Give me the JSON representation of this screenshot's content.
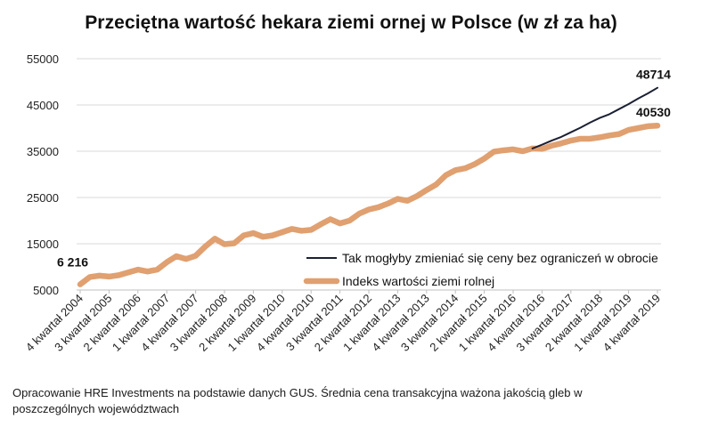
{
  "chart_title": "Przeciętna wartość hekara ziemi ornej w Polsce (w zł za ha)",
  "footnote": "Opracowanie HRE Investments na podstawie danych GUS. Średnia cena transakcyjna ważona jakością gleb w poszczególnych województwach",
  "colors": {
    "index_series": "#e0a070",
    "hypothetical_series": "#1b2033",
    "gridline": "#d9d9d9",
    "axis": "#bfbfbf"
  },
  "chart_data": {
    "type": "line",
    "title": "Przeciętna wartość hekara ziemi ornej w Polsce (w zł za ha)",
    "xlabel": "",
    "ylabel": "",
    "ylim": [
      5000,
      55000
    ],
    "yticks": [
      5000,
      15000,
      25000,
      35000,
      45000,
      55000
    ],
    "ytick_labels": [
      "5000",
      "15000",
      "25000",
      "35000",
      "45000",
      "55000"
    ],
    "grid": true,
    "legend_position": "bottom-right",
    "categories": [
      "4 kwartał 2004",
      "1 kwartał 2005",
      "2 kwartał 2005",
      "3 kwartał 2005",
      "4 kwartał 2005",
      "1 kwartał 2006",
      "2 kwartał 2006",
      "3 kwartał 2006",
      "4 kwartał 2006",
      "1 kwartał 2007",
      "2 kwartał 2007",
      "3 kwartał 2007",
      "4 kwartał 2007",
      "1 kwartał 2008",
      "2 kwartał 2008",
      "3 kwartał 2008",
      "4 kwartał 2008",
      "1 kwartał 2009",
      "2 kwartał 2009",
      "3 kwartał 2009",
      "4 kwartał 2009",
      "1 kwartał 2010",
      "2 kwartał 2010",
      "3 kwartał 2010",
      "4 kwartał 2010",
      "1 kwartał 2011",
      "2 kwartał 2011",
      "3 kwartał 2011",
      "4 kwartał 2011",
      "1 kwartał 2012",
      "2 kwartał 2012",
      "3 kwartał 2012",
      "4 kwartał 2012",
      "1 kwartał 2013",
      "2 kwartał 2013",
      "3 kwartał 2013",
      "4 kwartał 2013",
      "1 kwartał 2014",
      "2 kwartał 2014",
      "3 kwartał 2014",
      "4 kwartał 2014",
      "1 kwartał 2015",
      "2 kwartał 2015",
      "3 kwartał 2015",
      "4 kwartał 2015",
      "1 kwartał 2016",
      "2 kwartał 2016",
      "3 kwartał 2016",
      "4 kwartał 2016",
      "1 kwartał 2017",
      "2 kwartał 2017",
      "3 kwartał 2017",
      "4 kwartał 2017",
      "1 kwartał 2018",
      "2 kwartał 2018",
      "3 kwartał 2018",
      "4 kwartał 2018",
      "1 kwartał 2019",
      "2 kwartał 2019",
      "3 kwartał 2019",
      "4 kwartał 2019"
    ],
    "x_tick_labels": [
      "4 kwartał 2004",
      "3 kwartał 2005",
      "2 kwartał 2006",
      "1 kwartał 2007",
      "4 kwartał 2007",
      "3 kwartał 2008",
      "2 kwartał 2009",
      "1 kwartał 2010",
      "4 kwartał 2010",
      "3 kwartał 2011",
      "2 kwartał 2012",
      "1 kwartał 2013",
      "4 kwartał 2013",
      "3 kwartał 2014",
      "2 kwartał 2015",
      "1 kwartał 2016",
      "4 kwartał 2016",
      "3 kwartał 2017",
      "2 kwartał 2018",
      "1 kwartał 2019",
      "4 kwartał 2019"
    ],
    "series": [
      {
        "name": "Indeks wartości ziemi rolnej",
        "values": [
          6216,
          7800,
          8100,
          7900,
          8200,
          8800,
          9400,
          9000,
          9400,
          11000,
          12300,
          11700,
          12400,
          14400,
          16100,
          14900,
          15100,
          16800,
          17300,
          16500,
          16800,
          17500,
          18200,
          17800,
          18000,
          19200,
          20300,
          19400,
          20000,
          21500,
          22400,
          22900,
          23700,
          24700,
          24300,
          25300,
          26600,
          27800,
          29800,
          30900,
          31300,
          32200,
          33400,
          34900,
          35200,
          35400,
          35000,
          35600,
          35500,
          36200,
          36700,
          37300,
          37700,
          37700,
          38000,
          38400,
          38700,
          39600,
          40000,
          40400,
          40530
        ]
      },
      {
        "name": "Tak mogłyby zmieniać się ceny bez ograniczeń w obrocie",
        "values": [
          null,
          null,
          null,
          null,
          null,
          null,
          null,
          null,
          null,
          null,
          null,
          null,
          null,
          null,
          null,
          null,
          null,
          null,
          null,
          null,
          null,
          null,
          null,
          null,
          null,
          null,
          null,
          null,
          null,
          null,
          null,
          null,
          null,
          null,
          null,
          null,
          null,
          null,
          null,
          null,
          null,
          null,
          null,
          null,
          null,
          null,
          null,
          35600,
          36400,
          37300,
          38100,
          39100,
          40100,
          41200,
          42200,
          43000,
          44100,
          45200,
          46400,
          47500,
          48714
        ]
      }
    ],
    "annotations": [
      {
        "text": "6 216",
        "series": 0,
        "index": 0
      },
      {
        "text": "40530",
        "series": 0,
        "index": 60
      },
      {
        "text": "48714",
        "series": 1,
        "index": 60
      }
    ]
  }
}
